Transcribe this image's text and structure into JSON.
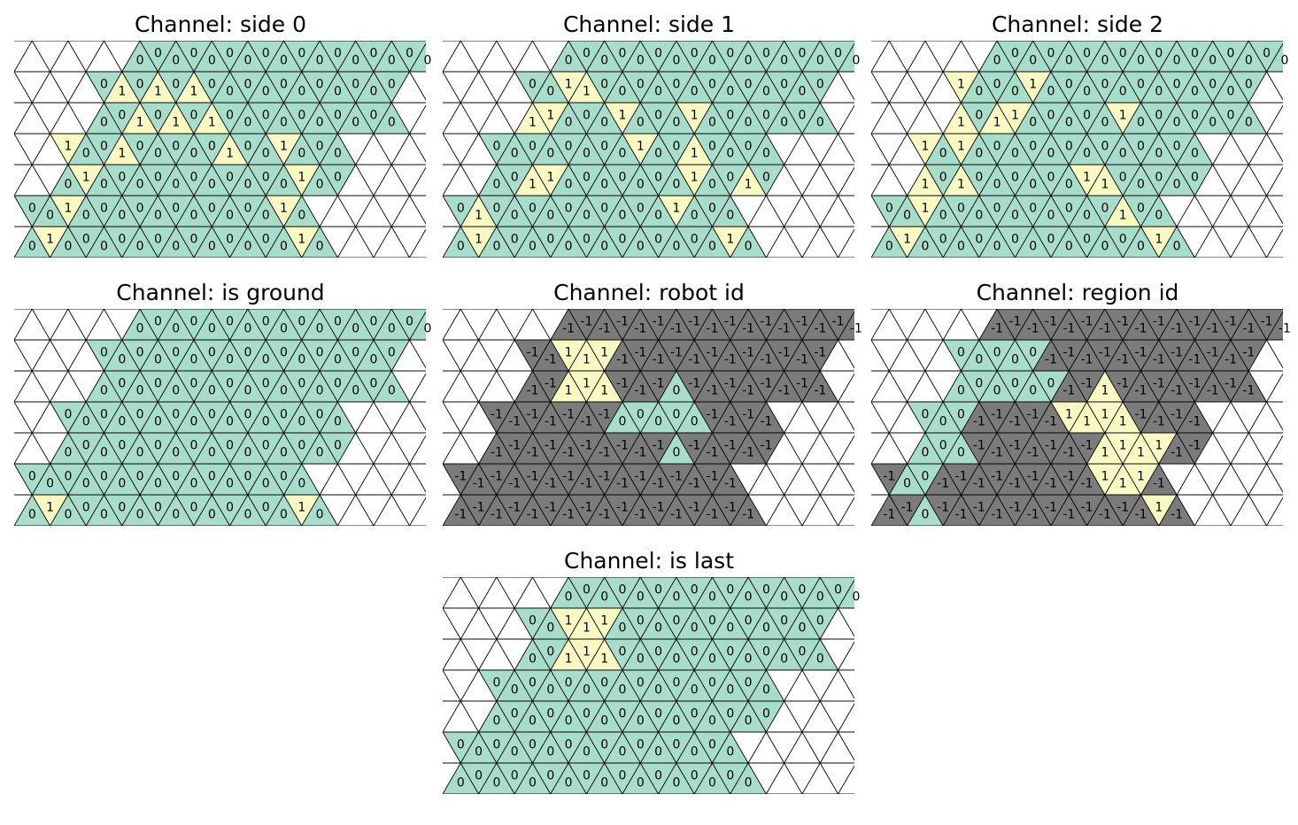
{
  "colors": {
    "zero": "#a8dccb",
    "one": "#fbf9c3",
    "minus_one": "#7b7b7b",
    "empty": "#ffffff",
    "line": "#000000"
  },
  "panels": [
    {
      "title": "Channel: side 0",
      "rows": [
        [
          null,
          null,
          null,
          null,
          null,
          null,
          "0",
          "0",
          "0",
          "0",
          "0",
          "0",
          "0",
          "0",
          "0",
          "0",
          "0",
          "0",
          "0",
          "0",
          "0",
          "0",
          "0"
        ],
        [
          null,
          null,
          null,
          null,
          null,
          "0",
          "1",
          "0",
          "1",
          "0",
          "1",
          "0",
          "0",
          "0",
          "0",
          "0",
          "0",
          "0",
          "0",
          "0",
          "0",
          "0"
        ],
        [
          null,
          null,
          null,
          null,
          "0",
          "0",
          "1",
          "0",
          "1",
          "0",
          "1",
          "0",
          "0",
          "0",
          "0",
          "0",
          "0",
          "0",
          "0",
          "0",
          "0"
        ],
        [
          null,
          null,
          null,
          "1",
          "0",
          "0",
          "1",
          "0",
          "0",
          "0",
          "0",
          "0",
          "1",
          "0",
          "0",
          "1",
          "0",
          "0",
          "0"
        ],
        [
          null,
          null,
          "0",
          "1",
          "0",
          "0",
          "0",
          "0",
          "0",
          "0",
          "0",
          "0",
          "0",
          "0",
          "0",
          "1",
          "0",
          "0"
        ],
        [
          null,
          "0",
          "0",
          "1",
          "0",
          "0",
          "0",
          "0",
          "0",
          "0",
          "0",
          "0",
          "0",
          "0",
          "0",
          "1",
          "0"
        ],
        [
          "0",
          "1",
          "0",
          "0",
          "0",
          "0",
          "0",
          "0",
          "0",
          "0",
          "0",
          "0",
          "0",
          "0",
          "0",
          "1",
          "0"
        ]
      ]
    },
    {
      "title": "Channel: side 1",
      "rows": [
        [
          null,
          null,
          null,
          null,
          null,
          null,
          "0",
          "0",
          "0",
          "0",
          "0",
          "0",
          "0",
          "0",
          "0",
          "0",
          "0",
          "0",
          "0",
          "0",
          "0",
          "0",
          "0"
        ],
        [
          null,
          null,
          null,
          null,
          null,
          "0",
          "0",
          "1",
          "1",
          "0",
          "0",
          "0",
          "0",
          "0",
          "0",
          "0",
          "0",
          "0",
          "0",
          "0",
          "0",
          "0"
        ],
        [
          null,
          null,
          null,
          null,
          "1",
          "1",
          "0",
          "0",
          "0",
          "1",
          "0",
          "0",
          "0",
          "1",
          "0",
          "0",
          "0",
          "0",
          "0",
          "0",
          "0"
        ],
        [
          null,
          null,
          null,
          "0",
          "0",
          "0",
          "0",
          "0",
          "0",
          "0",
          "0",
          "1",
          "0",
          "0",
          "1",
          "0",
          "0",
          "0",
          "0"
        ],
        [
          null,
          null,
          "0",
          "0",
          "1",
          "1",
          "0",
          "0",
          "0",
          "0",
          "0",
          "0",
          "0",
          "1",
          "0",
          "0",
          "1",
          "0"
        ],
        [
          null,
          "0",
          "1",
          "0",
          "0",
          "0",
          "0",
          "0",
          "0",
          "0",
          "0",
          "0",
          "0",
          "1",
          "0",
          "0",
          "0"
        ],
        [
          "0",
          "1",
          "0",
          "0",
          "0",
          "0",
          "0",
          "0",
          "0",
          "0",
          "0",
          "0",
          "0",
          "0",
          "0",
          "1",
          "0"
        ]
      ]
    },
    {
      "title": "Channel: side 2",
      "rows": [
        [
          null,
          null,
          null,
          null,
          null,
          null,
          "0",
          "0",
          "0",
          "0",
          "0",
          "0",
          "0",
          "0",
          "0",
          "0",
          "0",
          "0",
          "0",
          "0",
          "0",
          "0",
          "0"
        ],
        [
          null,
          null,
          null,
          null,
          null,
          "1",
          "0",
          "0",
          "0",
          "1",
          "0",
          "0",
          "0",
          "0",
          "0",
          "0",
          "0",
          "0",
          "0",
          "0",
          "0",
          "0"
        ],
        [
          null,
          null,
          null,
          null,
          "1",
          "0",
          "1",
          "1",
          "0",
          "0",
          "0",
          "0",
          "0",
          "1",
          "0",
          "0",
          "0",
          "0",
          "0",
          "0",
          "0"
        ],
        [
          null,
          null,
          null,
          "1",
          "0",
          "1",
          "0",
          "0",
          "0",
          "0",
          "0",
          "0",
          "0",
          "0",
          "0",
          "0",
          "0",
          "0",
          "0"
        ],
        [
          null,
          null,
          "1",
          "0",
          "1",
          "0",
          "0",
          "0",
          "0",
          "0",
          "0",
          "1",
          "1",
          "0",
          "0",
          "0",
          "0",
          "0"
        ],
        [
          null,
          "0",
          "0",
          "1",
          "0",
          "0",
          "0",
          "0",
          "0",
          "0",
          "0",
          "0",
          "0",
          "0",
          "1",
          "0",
          "0"
        ],
        [
          "0",
          "1",
          "0",
          "0",
          "0",
          "0",
          "0",
          "0",
          "0",
          "0",
          "0",
          "0",
          "0",
          "0",
          "0",
          "1",
          "0"
        ]
      ]
    },
    {
      "title": "Channel: is ground",
      "rows": [
        [
          null,
          null,
          null,
          null,
          null,
          null,
          "0",
          "0",
          "0",
          "0",
          "0",
          "0",
          "0",
          "0",
          "0",
          "0",
          "0",
          "0",
          "0",
          "0",
          "0",
          "0",
          "0"
        ],
        [
          null,
          null,
          null,
          null,
          null,
          "0",
          "0",
          "0",
          "0",
          "0",
          "0",
          "0",
          "0",
          "0",
          "0",
          "0",
          "0",
          "0",
          "0",
          "0",
          "0",
          "0"
        ],
        [
          null,
          null,
          null,
          null,
          "0",
          "0",
          "0",
          "0",
          "0",
          "0",
          "0",
          "0",
          "0",
          "0",
          "0",
          "0",
          "0",
          "0",
          "0",
          "0",
          "0"
        ],
        [
          null,
          null,
          null,
          "0",
          "0",
          "0",
          "0",
          "0",
          "0",
          "0",
          "0",
          "0",
          "0",
          "0",
          "0",
          "0",
          "0",
          "0",
          "0"
        ],
        [
          null,
          null,
          "0",
          "0",
          "0",
          "0",
          "0",
          "0",
          "0",
          "0",
          "0",
          "0",
          "0",
          "0",
          "0",
          "0",
          "0",
          "0"
        ],
        [
          null,
          "0",
          "0",
          "0",
          "0",
          "0",
          "0",
          "0",
          "0",
          "0",
          "0",
          "0",
          "0",
          "0",
          "0",
          "0",
          "0"
        ],
        [
          "0",
          "1",
          "0",
          "0",
          "0",
          "0",
          "0",
          "0",
          "0",
          "0",
          "0",
          "0",
          "0",
          "0",
          "0",
          "1",
          "0"
        ]
      ]
    },
    {
      "title": "Channel: robot id",
      "rows": [
        [
          null,
          null,
          null,
          null,
          null,
          null,
          "-1",
          "-1",
          "-1",
          "-1",
          "-1",
          "-1",
          "-1",
          "-1",
          "-1",
          "-1",
          "-1",
          "-1",
          "-1",
          "-1",
          "-1",
          "-1",
          "-1"
        ],
        [
          null,
          null,
          null,
          null,
          null,
          "-1",
          "-1",
          "1",
          "1",
          "1",
          "-1",
          "-1",
          "-1",
          "-1",
          "-1",
          "-1",
          "-1",
          "-1",
          "-1",
          "-1",
          "-1",
          "-1"
        ],
        [
          null,
          null,
          null,
          null,
          "-1",
          "-1",
          "1",
          "1",
          "1",
          "-1",
          "-1",
          "-1",
          "0",
          "-1",
          "-1",
          "-1",
          "-1",
          "-1",
          "-1",
          "-1",
          "-1"
        ],
        [
          null,
          null,
          null,
          "-1",
          "-1",
          "-1",
          "-1",
          "-1",
          "-1",
          "-1",
          "0",
          "0",
          "0",
          "0",
          "0",
          "-1",
          "-1",
          "-1",
          "-1"
        ],
        [
          null,
          null,
          "-1",
          "-1",
          "-1",
          "-1",
          "-1",
          "-1",
          "-1",
          "-1",
          "-1",
          "-1",
          "0",
          "-1",
          "-1",
          "-1",
          "-1",
          "-1"
        ],
        [
          null,
          "-1",
          "-1",
          "-1",
          "-1",
          "-1",
          "-1",
          "-1",
          "-1",
          "-1",
          "-1",
          "-1",
          "-1",
          "-1",
          "-1",
          "-1",
          "-1"
        ],
        [
          "-1",
          "-1",
          "-1",
          "-1",
          "-1",
          "-1",
          "-1",
          "-1",
          "-1",
          "-1",
          "-1",
          "-1",
          "-1",
          "-1",
          "-1",
          "-1",
          "-1"
        ]
      ]
    },
    {
      "title": "Channel: region id",
      "rows": [
        [
          null,
          null,
          null,
          null,
          null,
          null,
          "-1",
          "-1",
          "-1",
          "-1",
          "-1",
          "-1",
          "-1",
          "-1",
          "-1",
          "-1",
          "-1",
          "-1",
          "-1",
          "-1",
          "-1",
          "-1",
          "-1"
        ],
        [
          null,
          null,
          null,
          null,
          null,
          "0",
          "0",
          "0",
          "0",
          "0",
          "-1",
          "-1",
          "-1",
          "-1",
          "-1",
          "-1",
          "-1",
          "-1",
          "-1",
          "-1",
          "-1",
          "-1"
        ],
        [
          null,
          null,
          null,
          null,
          "0",
          "0",
          "0",
          "0",
          "0",
          "0",
          "-1",
          "-1",
          "1",
          "-1",
          "-1",
          "-1",
          "-1",
          "-1",
          "-1",
          "-1",
          "-1"
        ],
        [
          null,
          null,
          null,
          "0",
          "0",
          "0",
          "-1",
          "-1",
          "-1",
          "-1",
          "-1",
          "1",
          "1",
          "1",
          "1",
          "-1",
          "-1",
          "-1",
          "-1"
        ],
        [
          null,
          null,
          "0",
          "0",
          "0",
          "-1",
          "-1",
          "-1",
          "-1",
          "-1",
          "-1",
          "-1",
          "1",
          "1",
          "1",
          "1",
          "-1",
          "-1"
        ],
        [
          null,
          "-1",
          "0",
          "0",
          "-1",
          "-1",
          "-1",
          "-1",
          "-1",
          "-1",
          "-1",
          "-1",
          "-1",
          "1",
          "1",
          "1",
          "-1"
        ],
        [
          "-1",
          "-1",
          "0",
          "-1",
          "-1",
          "-1",
          "-1",
          "-1",
          "-1",
          "-1",
          "-1",
          "-1",
          "-1",
          "-1",
          "-1",
          "1",
          "-1"
        ]
      ]
    },
    {
      "title": "Channel: is last",
      "rows": [
        [
          null,
          null,
          null,
          null,
          null,
          null,
          "0",
          "0",
          "0",
          "0",
          "0",
          "0",
          "0",
          "0",
          "0",
          "0",
          "0",
          "0",
          "0",
          "0",
          "0",
          "0",
          "0"
        ],
        [
          null,
          null,
          null,
          null,
          null,
          "0",
          "0",
          "1",
          "1",
          "1",
          "0",
          "0",
          "0",
          "0",
          "0",
          "0",
          "0",
          "0",
          "0",
          "0",
          "0",
          "0"
        ],
        [
          null,
          null,
          null,
          null,
          "0",
          "0",
          "1",
          "1",
          "1",
          "0",
          "0",
          "0",
          "0",
          "0",
          "0",
          "0",
          "0",
          "0",
          "0",
          "0",
          "0"
        ],
        [
          null,
          null,
          null,
          "0",
          "0",
          "0",
          "0",
          "0",
          "0",
          "0",
          "0",
          "0",
          "0",
          "0",
          "0",
          "0",
          "0",
          "0",
          "0"
        ],
        [
          null,
          null,
          "0",
          "0",
          "0",
          "0",
          "0",
          "0",
          "0",
          "0",
          "0",
          "0",
          "0",
          "0",
          "0",
          "0",
          "0",
          "0"
        ],
        [
          null,
          "0",
          "0",
          "0",
          "0",
          "0",
          "0",
          "0",
          "0",
          "0",
          "0",
          "0",
          "0",
          "0",
          "0",
          "0",
          "0"
        ],
        [
          "0",
          "0",
          "0",
          "0",
          "0",
          "0",
          "0",
          "0",
          "0",
          "0",
          "0",
          "0",
          "0",
          "0",
          "0",
          "0",
          "0"
        ]
      ]
    }
  ]
}
